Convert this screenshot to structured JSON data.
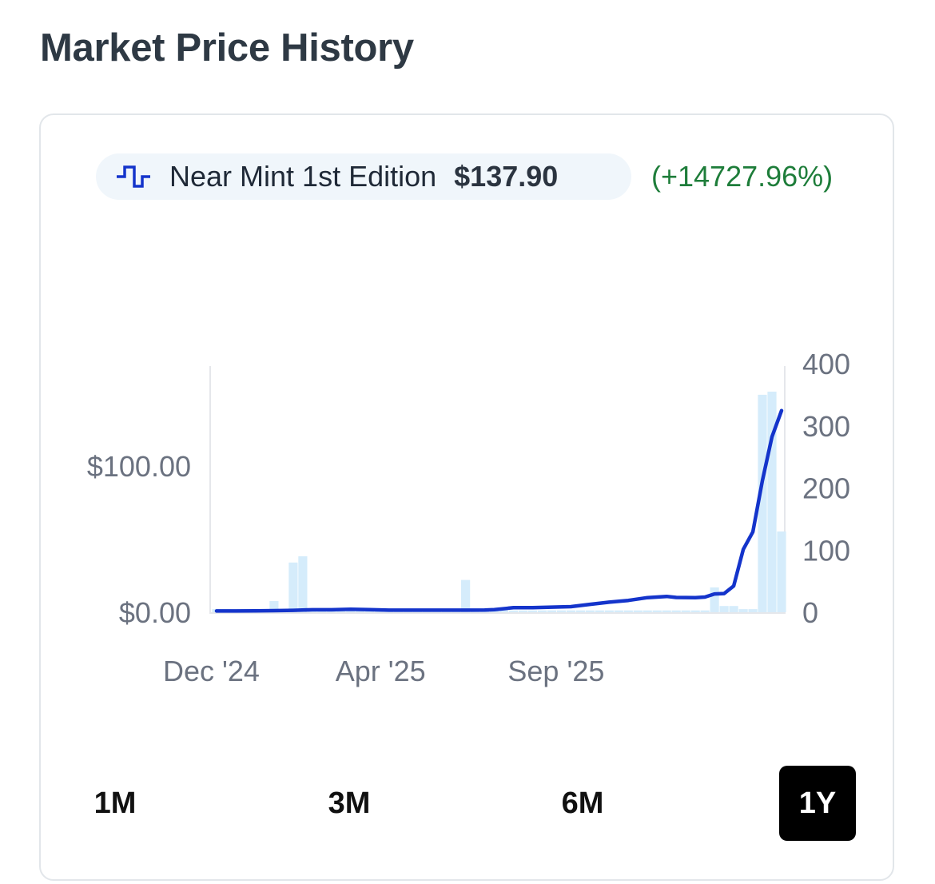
{
  "page": {
    "title": "Market Price History"
  },
  "legend": {
    "series_name": "Near Mint 1st Edition",
    "price": "$137.90",
    "change": "(+14727.96%)",
    "icon": "step-line-icon",
    "color": "#1434cb"
  },
  "range_buttons": [
    {
      "label": "1M",
      "active": false
    },
    {
      "label": "3M",
      "active": false
    },
    {
      "label": "6M",
      "active": false
    },
    {
      "label": "1Y",
      "active": true
    }
  ],
  "colors": {
    "line": "#1434cb",
    "volume_bar": "#d5ecfb",
    "positive": "#1e7d3a",
    "axis_text": "#6b7280"
  },
  "chart_data": {
    "type": "line",
    "title": "",
    "left_axis": {
      "ticks": [
        0,
        100
      ],
      "tick_labels": [
        "$0.00",
        "$100.00"
      ],
      "ylim": [
        0,
        170
      ]
    },
    "right_axis": {
      "ticks": [
        0,
        100,
        200,
        300,
        400
      ],
      "tick_labels": [
        "0",
        "100",
        "200",
        "300",
        "400"
      ],
      "ylim": [
        0,
        400
      ]
    },
    "x_tick_labels": [
      "Dec '24",
      "Apr '25",
      "Sep '25"
    ],
    "x_tick_weeks": [
      0,
      18,
      36
    ],
    "series": [
      {
        "kind": "line",
        "axis": "left",
        "points": [
          [
            0,
            0.9
          ],
          [
            2,
            0.9
          ],
          [
            4,
            1.0
          ],
          [
            6,
            1.1
          ],
          [
            8,
            1.3
          ],
          [
            10,
            1.7
          ],
          [
            12,
            1.7
          ],
          [
            14,
            2.1
          ],
          [
            16,
            1.8
          ],
          [
            18,
            1.4
          ],
          [
            20,
            1.4
          ],
          [
            22,
            1.4
          ],
          [
            24,
            1.4
          ],
          [
            26,
            1.4
          ],
          [
            28,
            1.5
          ],
          [
            29,
            1.8
          ],
          [
            31,
            3.1
          ],
          [
            33,
            3.1
          ],
          [
            35,
            3.5
          ],
          [
            37,
            3.8
          ],
          [
            39,
            5.4
          ],
          [
            41,
            6.9
          ],
          [
            43,
            8.1
          ],
          [
            45,
            10.0
          ],
          [
            47,
            10.8
          ],
          [
            48,
            10.1
          ],
          [
            50,
            10.0
          ],
          [
            51,
            10.4
          ],
          [
            52,
            12.5
          ],
          [
            53,
            12.8
          ],
          [
            54,
            18.0
          ],
          [
            55,
            43.0
          ],
          [
            56,
            55.0
          ],
          [
            57,
            90.0
          ],
          [
            58,
            120.0
          ],
          [
            59,
            137.9
          ]
        ]
      },
      {
        "kind": "bar",
        "axis": "right",
        "name": "",
        "weeks": [
          0,
          1,
          2,
          3,
          4,
          5,
          6,
          7,
          8,
          9,
          10,
          11,
          12,
          13,
          14,
          15,
          16,
          17,
          18,
          19,
          20,
          21,
          22,
          23,
          24,
          25,
          26,
          27,
          28,
          29,
          30,
          31,
          32,
          33,
          34,
          35,
          36,
          37,
          38,
          39,
          40,
          41,
          42,
          43,
          44,
          45,
          46,
          47,
          48,
          49,
          50,
          51,
          52,
          53,
          54,
          55,
          56,
          57,
          58,
          59
        ],
        "values": [
          5,
          5,
          3,
          5,
          3,
          3,
          18,
          5,
          80,
          90,
          5,
          4,
          3,
          3,
          3,
          3,
          3,
          3,
          3,
          5,
          3,
          3,
          3,
          3,
          3,
          3,
          52,
          3,
          3,
          3,
          3,
          3,
          3,
          3,
          3,
          3,
          3,
          3,
          3,
          3,
          3,
          3,
          3,
          3,
          3,
          3,
          3,
          3,
          3,
          3,
          3,
          3,
          40,
          10,
          10,
          5,
          5,
          350,
          355,
          130
        ]
      }
    ]
  }
}
